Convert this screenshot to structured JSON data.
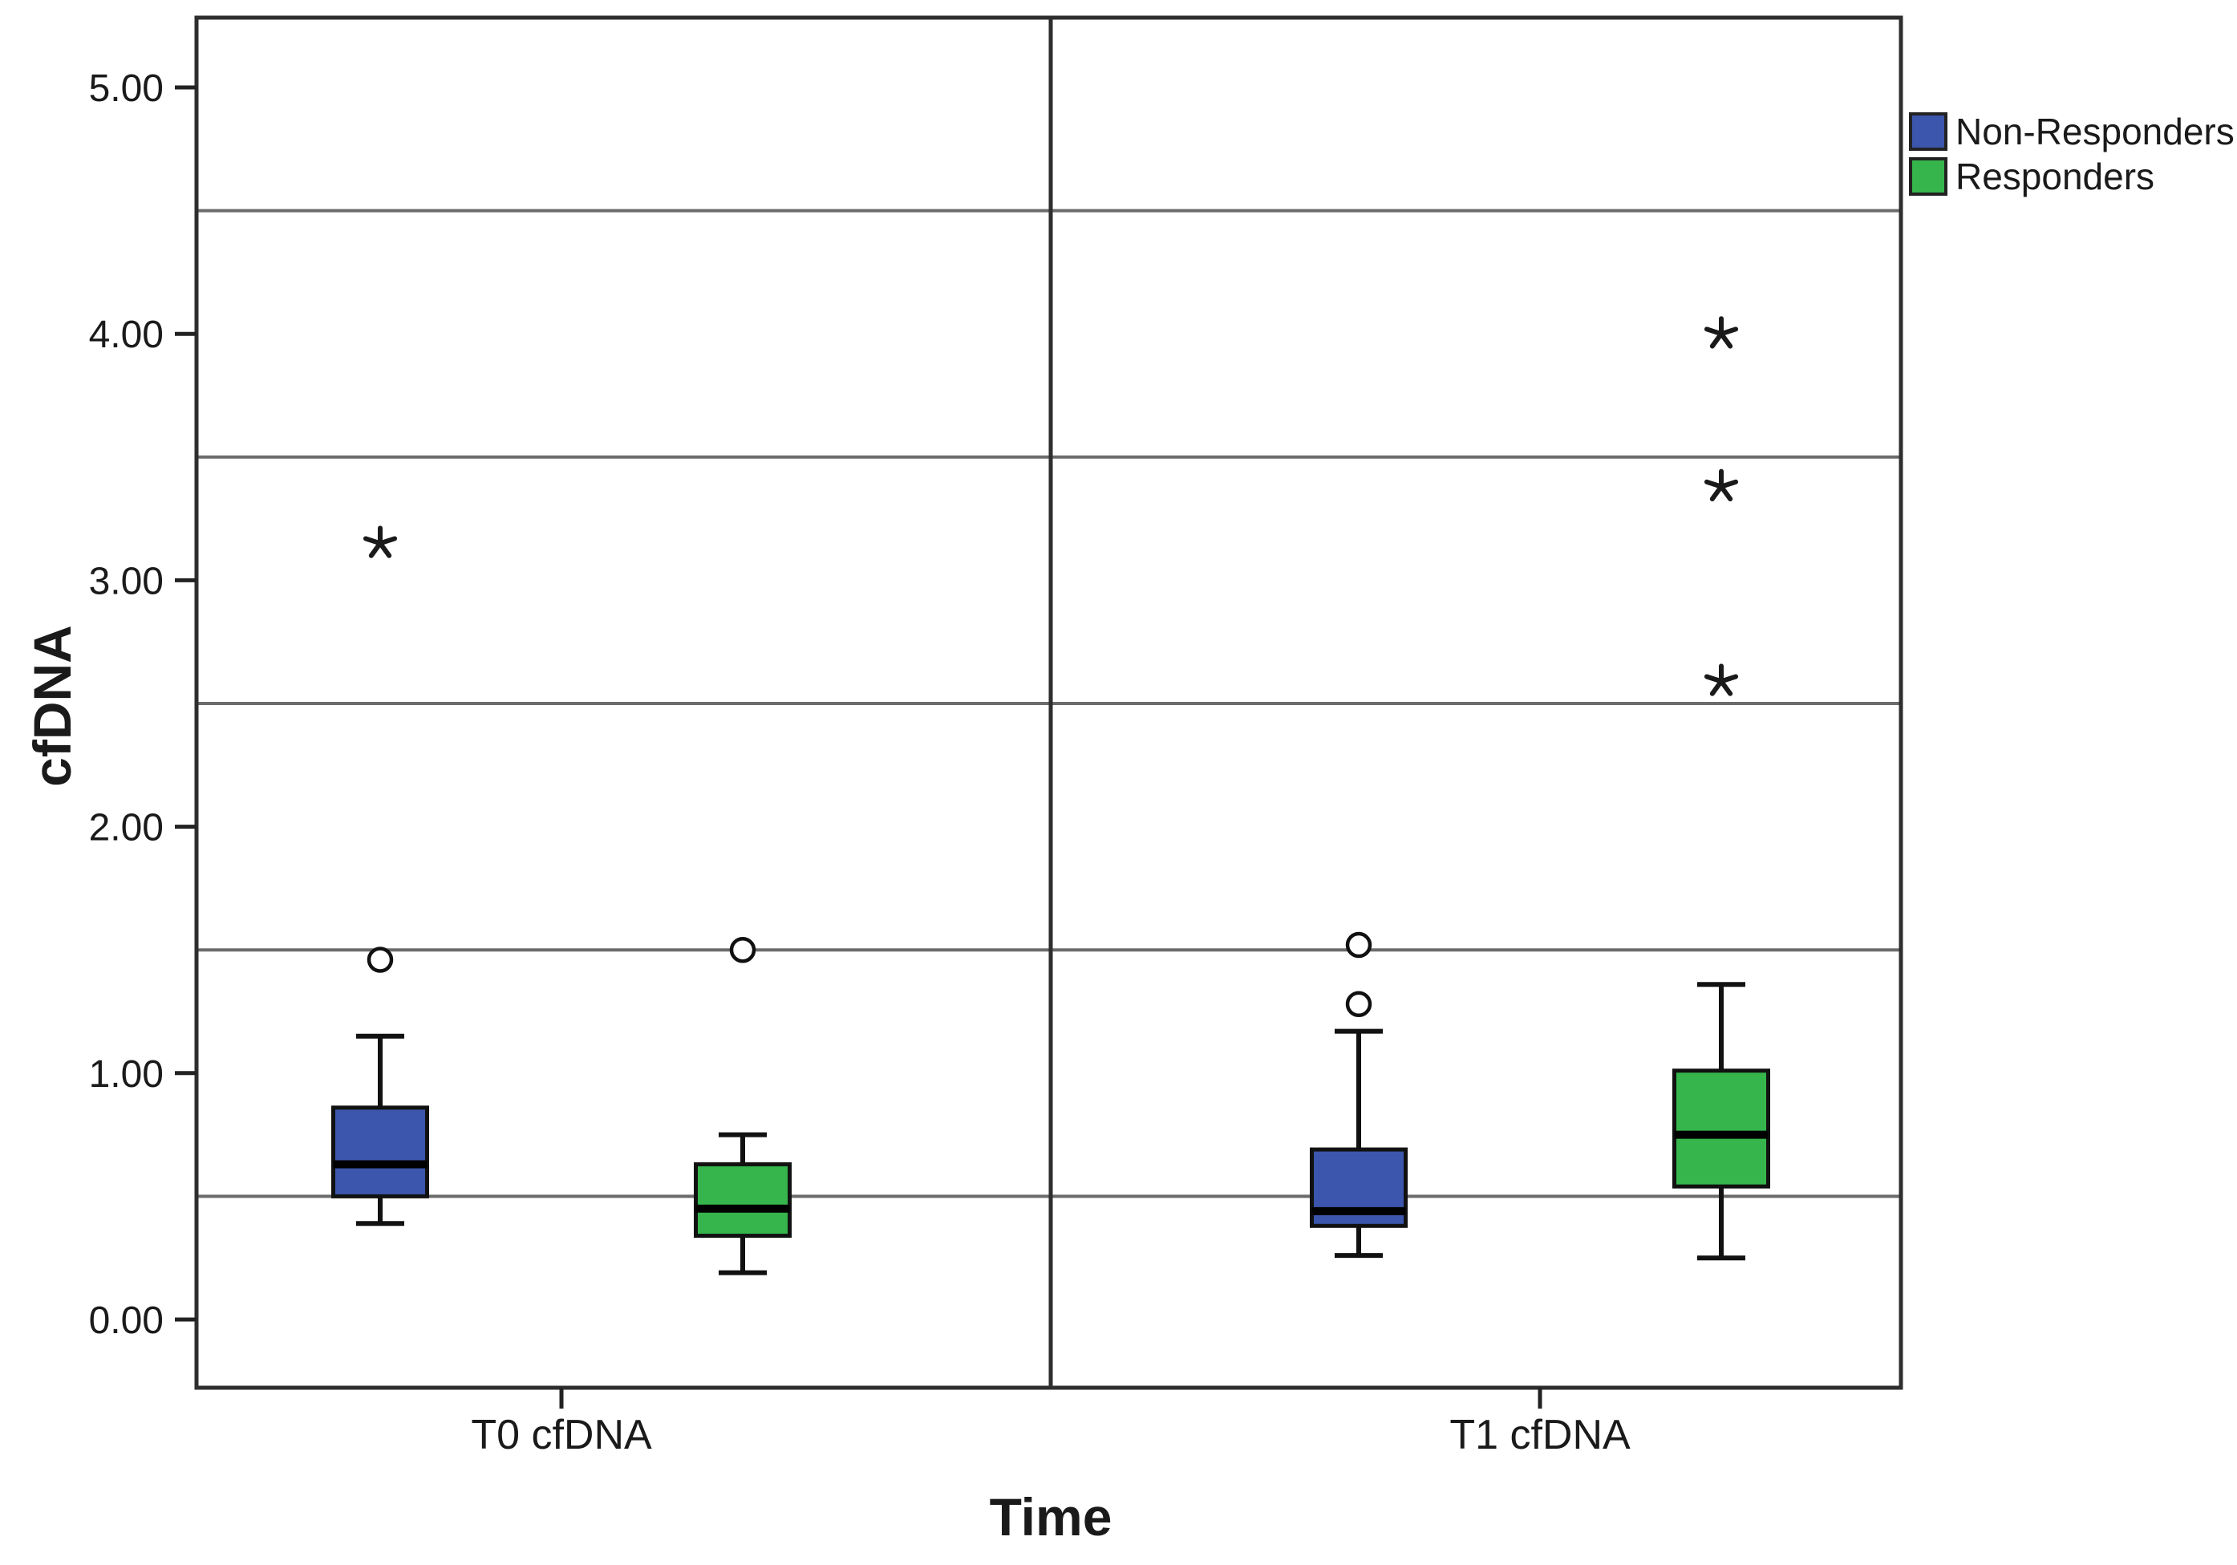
{
  "chart_data": {
    "type": "box",
    "title": "",
    "xlabel": "Time",
    "ylabel": "cfDNA",
    "categories": [
      "T0 cfDNA",
      "T1 cfDNA"
    ],
    "ytick_values": [
      0,
      1,
      2,
      3,
      4,
      5
    ],
    "ytick_labels": [
      "0.00",
      "1.00",
      "2.00",
      "3.00",
      "4.00",
      "5.00"
    ],
    "gridline_values": [
      0.5,
      1.5,
      2.5,
      3.5,
      4.5
    ],
    "ylim": [
      -0.28,
      5.3
    ],
    "grid": "horizontal",
    "legend_position": "top-right-outside",
    "background_color": "#ffffff",
    "frame_color": "#2e2e2e",
    "grid_color": "#6b6b6b",
    "marker_semantics": {
      "circle": "outlier",
      "asterisk": "extreme-value"
    },
    "legend": [
      {
        "label": "Non-Responders",
        "color": "#3b56ac"
      },
      {
        "label": "Responders",
        "color": "#35b54c"
      }
    ],
    "series": [
      {
        "name": "Non-Responders",
        "color": "#3b56ac",
        "boxes": [
          {
            "category": "T0 cfDNA",
            "whisker_low": 0.39,
            "q1": 0.5,
            "median": 0.63,
            "q3": 0.86,
            "whisker_high": 1.15,
            "outliers": [
              1.46
            ],
            "extremes": [
              3.15
            ]
          },
          {
            "category": "T1 cfDNA",
            "whisker_low": 0.26,
            "q1": 0.38,
            "median": 0.44,
            "q3": 0.69,
            "whisker_high": 1.17,
            "outliers": [
              1.28,
              1.52
            ],
            "extremes": []
          }
        ]
      },
      {
        "name": "Responders",
        "color": "#35b54c",
        "boxes": [
          {
            "category": "T0 cfDNA",
            "whisker_low": 0.19,
            "q1": 0.34,
            "median": 0.45,
            "q3": 0.63,
            "whisker_high": 0.75,
            "outliers": [
              1.5
            ],
            "extremes": []
          },
          {
            "category": "T1 cfDNA",
            "whisker_low": 0.25,
            "q1": 0.54,
            "median": 0.75,
            "q3": 1.01,
            "whisker_high": 1.36,
            "outliers": [],
            "extremes": [
              2.59,
              3.38,
              4.0
            ]
          }
        ]
      }
    ]
  }
}
